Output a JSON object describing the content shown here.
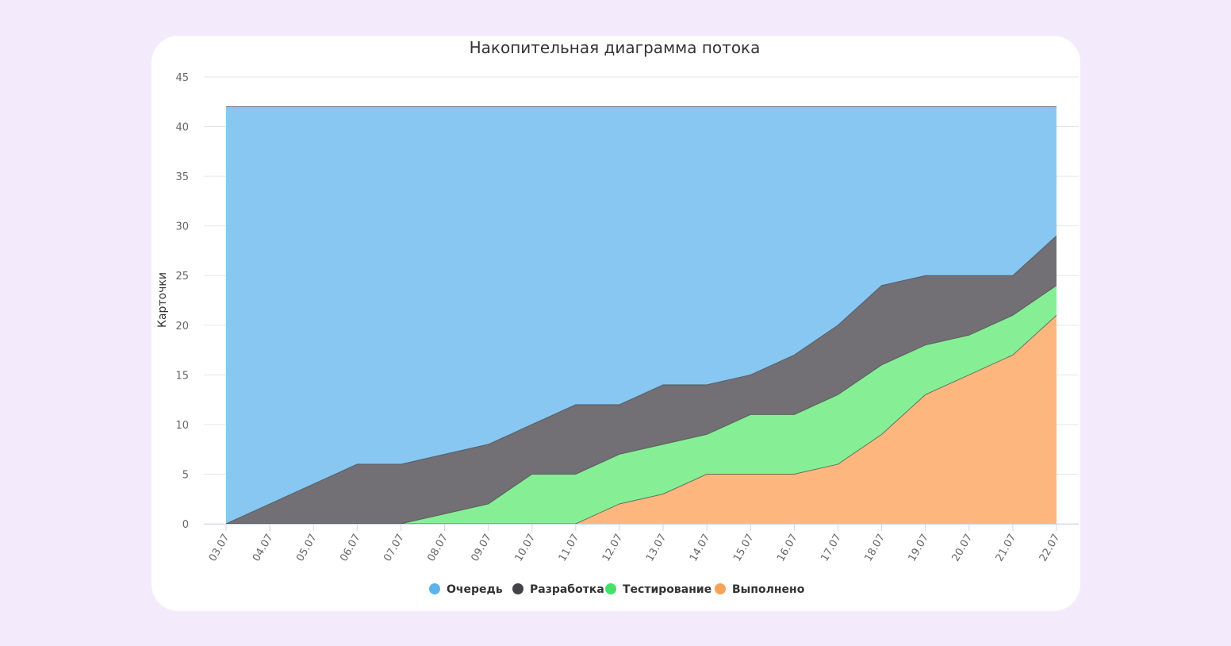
{
  "chart_data": {
    "type": "area",
    "stacked": true,
    "title": "Накопительная диаграмма потока",
    "xlabel": "",
    "ylabel": "Карточки",
    "ylim": [
      0,
      45
    ],
    "yticks": [
      0,
      5,
      10,
      15,
      20,
      25,
      30,
      35,
      40,
      45
    ],
    "grid": true,
    "legend_position": "bottom",
    "x": [
      "03.07",
      "04.07",
      "05.07",
      "06.07",
      "07.07",
      "08.07",
      "09.07",
      "10.07",
      "11.07",
      "12.07",
      "13.07",
      "14.07",
      "15.07",
      "16.07",
      "17.07",
      "18.07",
      "19.07",
      "20.07",
      "21.07",
      "22.07"
    ],
    "series": [
      {
        "name": "Очередь",
        "color": "#88c7f2",
        "values": [
          42,
          40,
          38,
          36,
          36,
          35,
          34,
          32,
          30,
          30,
          28,
          28,
          27,
          25,
          22,
          18,
          17,
          17,
          17,
          13
        ]
      },
      {
        "name": "Разработка",
        "color": "#727075",
        "values": [
          0,
          2,
          4,
          6,
          6,
          6,
          6,
          5,
          7,
          5,
          6,
          5,
          4,
          6,
          7,
          8,
          7,
          6,
          4,
          5
        ]
      },
      {
        "name": "Тестирование",
        "color": "#86ef96",
        "values": [
          0,
          0,
          0,
          0,
          0,
          1,
          2,
          5,
          5,
          5,
          5,
          4,
          6,
          6,
          7,
          7,
          5,
          4,
          4,
          3
        ]
      },
      {
        "name": "Выполнено",
        "color": "#fdb77e",
        "values": [
          0,
          0,
          0,
          0,
          0,
          0,
          0,
          0,
          0,
          2,
          3,
          5,
          5,
          5,
          6,
          9,
          13,
          15,
          17,
          21
        ]
      }
    ],
    "legend_colors": [
      "#5bb3ea",
      "#434348",
      "#46e06a",
      "#f7a35c"
    ]
  }
}
